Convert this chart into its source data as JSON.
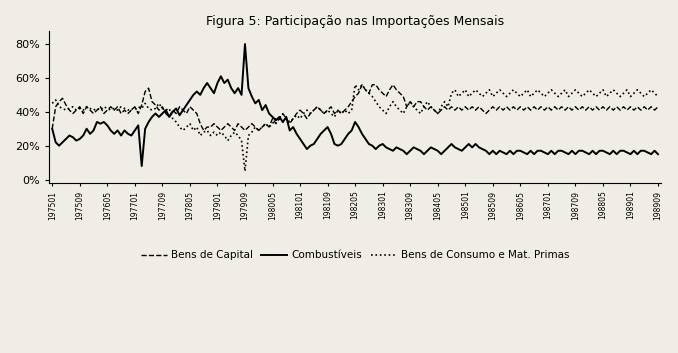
{
  "title": "Figura 5: Participação nas Importações Mensais",
  "ytick_values": [
    0,
    20,
    40,
    60,
    80
  ],
  "ytick_labels": [
    "0%",
    "20%",
    "40%",
    "60%",
    "80%"
  ],
  "xtick_labels": [
    "197501",
    "197509",
    "197605",
    "197701",
    "197709",
    "197805",
    "197901",
    "197909",
    "198005",
    "198101",
    "198109",
    "198205",
    "198301",
    "198309",
    "198405",
    "198501",
    "198509",
    "198605",
    "198701",
    "198709",
    "198805",
    "198901",
    "198909"
  ],
  "background_color": "#f0ede6",
  "legend_label_capital": "Bens de Capital",
  "legend_label_comb": "Combustíveis",
  "legend_label_consumo": "Bens de Consumo e Mat. Primas",
  "combustiveis": [
    30,
    22,
    20,
    22,
    24,
    26,
    25,
    23,
    24,
    26,
    30,
    27,
    29,
    34,
    33,
    34,
    32,
    29,
    27,
    29,
    26,
    29,
    27,
    26,
    29,
    32,
    8,
    30,
    34,
    37,
    39,
    37,
    39,
    41,
    37,
    40,
    42,
    38,
    41,
    44,
    47,
    50,
    52,
    50,
    54,
    57,
    54,
    51,
    57,
    61,
    57,
    59,
    54,
    51,
    54,
    50,
    80,
    54,
    49,
    45,
    47,
    41,
    44,
    39,
    37,
    35,
    37,
    34,
    37,
    29,
    31,
    27,
    24,
    21,
    18,
    20,
    21,
    24,
    27,
    29,
    31,
    27,
    21,
    20,
    21,
    24,
    27,
    29,
    34,
    31,
    27,
    24,
    21,
    20,
    18,
    20,
    21,
    19,
    18,
    17,
    19,
    18,
    17,
    15,
    17,
    19,
    18,
    17,
    15,
    17,
    19,
    18,
    17,
    15,
    17,
    19,
    21,
    19,
    18,
    17,
    19,
    21,
    19,
    21,
    19,
    18,
    17,
    15,
    17,
    15,
    17,
    16,
    15,
    17,
    15,
    17,
    17,
    16,
    15,
    17,
    15,
    17,
    17,
    16,
    15,
    17,
    15,
    17,
    17,
    16,
    15,
    17,
    15,
    17,
    17,
    16,
    15,
    17,
    15,
    17,
    17,
    16,
    15,
    17,
    15,
    17,
    17,
    16,
    15,
    17,
    15,
    17,
    17,
    16,
    15,
    17,
    15,
    17,
    17,
    16,
    15
  ],
  "bens_capital": [
    30,
    43,
    46,
    48,
    44,
    41,
    39,
    41,
    43,
    39,
    43,
    41,
    39,
    41,
    43,
    39,
    41,
    43,
    41,
    43,
    39,
    41,
    39,
    41,
    43,
    39,
    44,
    52,
    54,
    46,
    44,
    41,
    43,
    39,
    37,
    41,
    39,
    43,
    41,
    39,
    43,
    41,
    39,
    33,
    29,
    31,
    31,
    33,
    31,
    29,
    31,
    33,
    31,
    29,
    33,
    31,
    29,
    31,
    33,
    31,
    29,
    31,
    33,
    31,
    36,
    33,
    36,
    39,
    36,
    33,
    36,
    39,
    41,
    39,
    36,
    39,
    41,
    43,
    41,
    39,
    41,
    43,
    39,
    41,
    39,
    41,
    43,
    46,
    49,
    51,
    56,
    53,
    51,
    56,
    56,
    53,
    51,
    49,
    53,
    56,
    53,
    51,
    49,
    43,
    46,
    43,
    46,
    46,
    43,
    41,
    43,
    41,
    39,
    41,
    43,
    41,
    43,
    41,
    43,
    41,
    43,
    41,
    43,
    41,
    43,
    41,
    39,
    41,
    43,
    41,
    43,
    41,
    43,
    41,
    43,
    41,
    43,
    41,
    43,
    41,
    43,
    41,
    43,
    41,
    43,
    41,
    43,
    41,
    43,
    41,
    43,
    41,
    43,
    41,
    43,
    41,
    43,
    41,
    43,
    41,
    43,
    41,
    43,
    41,
    43,
    41,
    43,
    41,
    43,
    41,
    43,
    41,
    43,
    41,
    43,
    41,
    43,
    41,
    43,
    41,
    43
  ],
  "consumo_mat": [
    45,
    47,
    43,
    42,
    41,
    42,
    43,
    41,
    42,
    41,
    43,
    42,
    41,
    42,
    41,
    43,
    42,
    41,
    42,
    41,
    43,
    42,
    41,
    42,
    41,
    43,
    42,
    45,
    42,
    41,
    42,
    45,
    42,
    41,
    42,
    36,
    34,
    31,
    29,
    31,
    33,
    29,
    31,
    26,
    28,
    29,
    26,
    28,
    26,
    28,
    26,
    23,
    26,
    28,
    26,
    23,
    5,
    26,
    28,
    31,
    29,
    31,
    33,
    31,
    33,
    36,
    36,
    34,
    36,
    34,
    36,
    38,
    36,
    39,
    41,
    39,
    41,
    43,
    41,
    39,
    41,
    39,
    37,
    41,
    39,
    41,
    39,
    41,
    56,
    53,
    56,
    53,
    51,
    49,
    46,
    43,
    41,
    39,
    43,
    46,
    43,
    41,
    39,
    43,
    46,
    43,
    41,
    39,
    43,
    46,
    43,
    41,
    39,
    43,
    46,
    43,
    51,
    53,
    49,
    51,
    53,
    49,
    51,
    53,
    51,
    49,
    51,
    53,
    49,
    51,
    53,
    51,
    49,
    51,
    53,
    51,
    49,
    51,
    53,
    49,
    51,
    53,
    51,
    49,
    51,
    53,
    51,
    49,
    51,
    53,
    49,
    51,
    53,
    51,
    49,
    51,
    53,
    51,
    49,
    51,
    53,
    49,
    51,
    53,
    51,
    49,
    51,
    53,
    49,
    51,
    53,
    51,
    49,
    51,
    53,
    51,
    49,
    51,
    53,
    49,
    51
  ]
}
